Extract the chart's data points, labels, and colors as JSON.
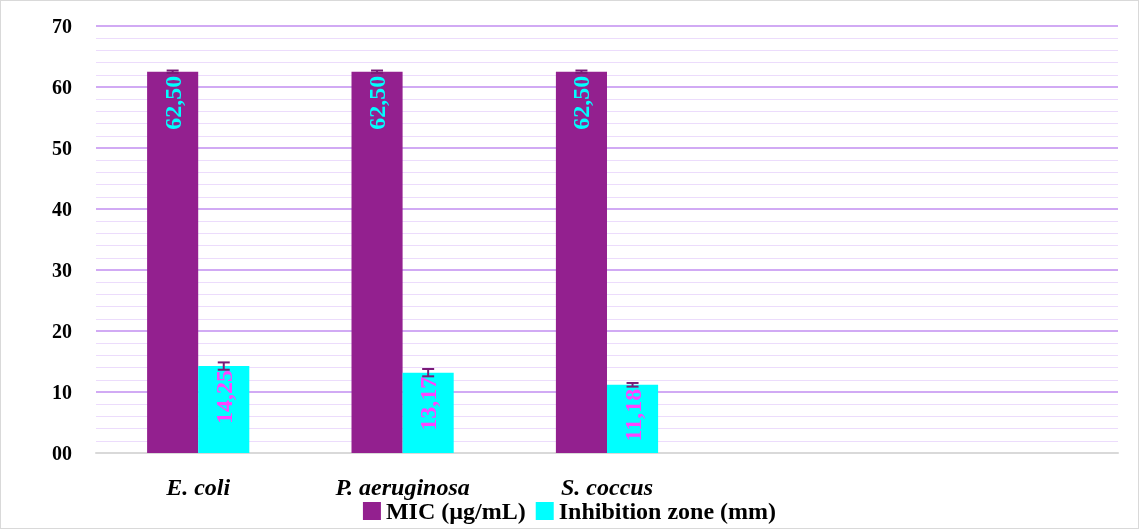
{
  "chart_data": {
    "type": "bar",
    "categories": [
      "E. coli",
      "P. aeruginosa",
      "S. coccus",
      null,
      null
    ],
    "series": [
      {
        "name": "MIC (µg/mL)",
        "color": "#93208f",
        "values": [
          62.5,
          62.5,
          62.5,
          null,
          null
        ],
        "value_labels": [
          "62,50",
          "62,50",
          "62,50",
          null,
          null
        ],
        "errors": [
          0.2,
          0.2,
          0.2,
          null,
          null
        ]
      },
      {
        "name": "Inhibition zone (mm)",
        "color": "#00ffff",
        "values": [
          14.25,
          13.17,
          11.18,
          null,
          null
        ],
        "value_labels": [
          "14,25",
          "13,17",
          "11,18",
          null,
          null
        ],
        "errors": [
          0.6,
          0.6,
          0.3,
          null,
          null
        ]
      }
    ],
    "ylim": [
      0,
      70
    ],
    "yticks": [
      {
        "value": 0,
        "label": "00"
      },
      10,
      20,
      30,
      40,
      50,
      60,
      70
    ],
    "grid": "y",
    "legend": "bottom"
  }
}
